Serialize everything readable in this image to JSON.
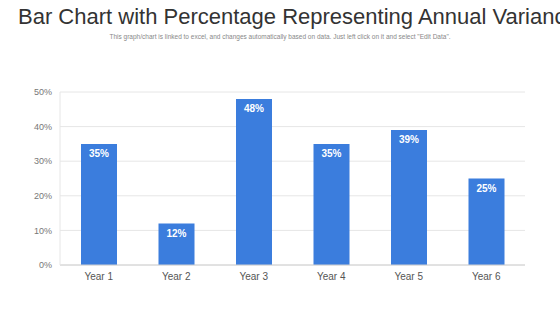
{
  "chart_data": {
    "type": "bar",
    "title": "Bar Chart with Percentage Representing Annual Variance",
    "subtitle": "This graph/chart is linked to excel, and changes automatically based on data. Just left click on it and select \"Edit Data\".",
    "categories": [
      "Year 1",
      "Year 2",
      "Year 3",
      "Year 4",
      "Year 5",
      "Year 6"
    ],
    "values": [
      35,
      12,
      48,
      35,
      39,
      25
    ],
    "value_labels": [
      "35%",
      "12%",
      "48%",
      "35%",
      "39%",
      "25%"
    ],
    "color": "#3b7ddd",
    "ylim": [
      0,
      50
    ],
    "yticks": [
      {
        "value": 0,
        "label": "0%"
      },
      {
        "value": 10,
        "label": "10%"
      },
      {
        "value": 20,
        "label": "20%"
      },
      {
        "value": 30,
        "label": "30%"
      },
      {
        "value": 40,
        "label": "40%"
      },
      {
        "value": 50,
        "label": "50%"
      }
    ],
    "grid": true,
    "data_labels": true
  }
}
